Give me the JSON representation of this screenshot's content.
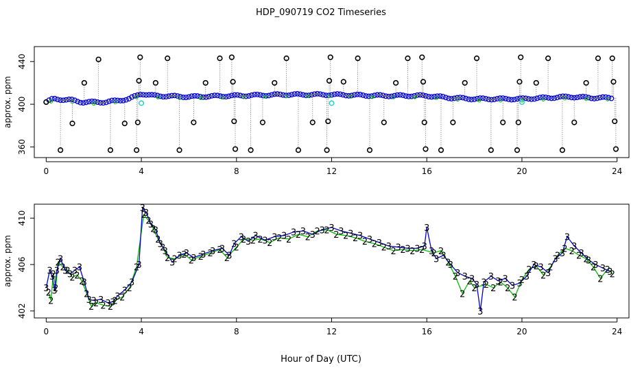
{
  "title": "HDP_090719  CO2 Timeseries",
  "xlabel": "Hour of Day (UTC)",
  "colors": {
    "axis": "#000000",
    "black_pts": "#000000",
    "blue": "#0000cc",
    "green": "#00bb00",
    "cyan": "#22cccc",
    "grey": "#888888"
  },
  "chart_data": [
    {
      "type": "scatter",
      "name": "top-panel",
      "ylabel": "approx. ppm",
      "xlim": [
        -0.5,
        24.5
      ],
      "ylim": [
        350,
        454
      ],
      "xticks": [
        0,
        4,
        8,
        12,
        16,
        20,
        24
      ],
      "yticks": [
        360,
        400,
        440
      ],
      "baseline": [
        [
          0,
          402
        ],
        [
          0.3,
          405
        ],
        [
          1,
          404
        ],
        [
          1.5,
          402
        ],
        [
          2.5,
          402
        ],
        [
          3.5,
          405
        ],
        [
          4,
          410
        ],
        [
          4.5,
          408
        ],
        [
          6,
          407
        ],
        [
          8,
          408
        ],
        [
          10,
          409
        ],
        [
          12,
          409
        ],
        [
          14,
          408
        ],
        [
          16,
          408
        ],
        [
          17,
          406
        ],
        [
          18,
          405
        ],
        [
          19,
          405
        ],
        [
          20,
          405
        ],
        [
          21,
          406
        ],
        [
          22,
          407
        ],
        [
          23,
          406
        ],
        [
          23.8,
          406
        ]
      ],
      "spikes": [
        {
          "x": 0.6,
          "y": 357
        },
        {
          "x": 1.1,
          "y": 382
        },
        {
          "x": 1.6,
          "y": 420
        },
        {
          "x": 2.2,
          "y": 442
        },
        {
          "x": 2.7,
          "y": 357
        },
        {
          "x": 3.3,
          "y": 382
        },
        {
          "x": 3.8,
          "y": 357
        },
        {
          "x": 3.85,
          "y": 383
        },
        {
          "x": 3.9,
          "y": 422
        },
        {
          "x": 3.95,
          "y": 444
        },
        {
          "x": 4.6,
          "y": 420
        },
        {
          "x": 5.1,
          "y": 443
        },
        {
          "x": 5.6,
          "y": 357
        },
        {
          "x": 6.2,
          "y": 383
        },
        {
          "x": 6.7,
          "y": 420
        },
        {
          "x": 7.3,
          "y": 443
        },
        {
          "x": 7.8,
          "y": 444
        },
        {
          "x": 7.85,
          "y": 421
        },
        {
          "x": 7.9,
          "y": 384
        },
        {
          "x": 7.95,
          "y": 358
        },
        {
          "x": 8.6,
          "y": 357
        },
        {
          "x": 9.1,
          "y": 383
        },
        {
          "x": 9.6,
          "y": 420
        },
        {
          "x": 10.1,
          "y": 443
        },
        {
          "x": 10.6,
          "y": 357
        },
        {
          "x": 11.2,
          "y": 383
        },
        {
          "x": 11.8,
          "y": 357
        },
        {
          "x": 11.85,
          "y": 384
        },
        {
          "x": 11.9,
          "y": 422
        },
        {
          "x": 11.95,
          "y": 444
        },
        {
          "x": 12.5,
          "y": 421
        },
        {
          "x": 13.1,
          "y": 443
        },
        {
          "x": 13.6,
          "y": 357
        },
        {
          "x": 14.2,
          "y": 383
        },
        {
          "x": 14.7,
          "y": 420
        },
        {
          "x": 15.2,
          "y": 443
        },
        {
          "x": 15.8,
          "y": 444
        },
        {
          "x": 15.85,
          "y": 421
        },
        {
          "x": 15.9,
          "y": 383
        },
        {
          "x": 15.95,
          "y": 358
        },
        {
          "x": 16.6,
          "y": 357
        },
        {
          "x": 17.1,
          "y": 383
        },
        {
          "x": 17.6,
          "y": 420
        },
        {
          "x": 18.1,
          "y": 443
        },
        {
          "x": 18.7,
          "y": 357
        },
        {
          "x": 19.2,
          "y": 383
        },
        {
          "x": 19.8,
          "y": 357
        },
        {
          "x": 19.85,
          "y": 383
        },
        {
          "x": 19.9,
          "y": 421
        },
        {
          "x": 19.95,
          "y": 444
        },
        {
          "x": 20.6,
          "y": 420
        },
        {
          "x": 21.1,
          "y": 443
        },
        {
          "x": 21.7,
          "y": 357
        },
        {
          "x": 22.2,
          "y": 383
        },
        {
          "x": 22.7,
          "y": 420
        },
        {
          "x": 23.2,
          "y": 443
        },
        {
          "x": 23.8,
          "y": 443
        },
        {
          "x": 23.85,
          "y": 421
        },
        {
          "x": 23.9,
          "y": 384
        },
        {
          "x": 23.95,
          "y": 358
        }
      ],
      "cyan_points": [
        [
          4.0,
          401
        ],
        [
          12.0,
          401
        ],
        [
          20.0,
          402
        ]
      ]
    },
    {
      "type": "line",
      "name": "bottom-panel",
      "ylabel": "approx. ppm",
      "xlim": [
        -0.5,
        24.5
      ],
      "ylim": [
        401.4,
        411.2
      ],
      "xticks": [
        0,
        4,
        8,
        12,
        16,
        20,
        24
      ],
      "yticks": [
        402,
        406,
        410
      ],
      "ytick_labels": [
        "402",
        "406",
        "410"
      ],
      "series": [
        {
          "name": "3",
          "label": "3",
          "color": "#0000cc",
          "points": [
            [
              0,
              404
            ],
            [
              0.15,
              405.5
            ],
            [
              0.25,
              405.0
            ],
            [
              0.35,
              403.8
            ],
            [
              0.45,
              405.5
            ],
            [
              0.6,
              406.5
            ],
            [
              0.8,
              405.5
            ],
            [
              1.0,
              405.2
            ],
            [
              1.2,
              405.5
            ],
            [
              1.4,
              405.8
            ],
            [
              1.6,
              404.5
            ],
            [
              1.8,
              403.0
            ],
            [
              2.0,
              402.9
            ],
            [
              2.3,
              403.0
            ],
            [
              2.6,
              402.7
            ],
            [
              2.8,
              402.8
            ],
            [
              3.0,
              403.3
            ],
            [
              3.3,
              403.8
            ],
            [
              3.6,
              404.5
            ],
            [
              3.9,
              406
            ],
            [
              4.05,
              410.9
            ],
            [
              4.2,
              410.5
            ],
            [
              4.4,
              409.5
            ],
            [
              4.6,
              409.0
            ],
            [
              4.8,
              407.8
            ],
            [
              5.0,
              407.2
            ],
            [
              5.3,
              406.2
            ],
            [
              5.6,
              406.8
            ],
            [
              5.9,
              407.0
            ],
            [
              6.2,
              406.6
            ],
            [
              6.6,
              406.9
            ],
            [
              7.0,
              407.2
            ],
            [
              7.4,
              407.4
            ],
            [
              7.7,
              406.8
            ],
            [
              7.9,
              407.8
            ],
            [
              8.2,
              408.4
            ],
            [
              8.5,
              408.0
            ],
            [
              8.8,
              408.5
            ],
            [
              9.2,
              408.1
            ],
            [
              9.6,
              408.4
            ],
            [
              10.0,
              408.5
            ],
            [
              10.4,
              408.8
            ],
            [
              10.8,
              408.9
            ],
            [
              11.2,
              408.6
            ],
            [
              11.6,
              409.0
            ],
            [
              12.0,
              409.2
            ],
            [
              12.4,
              408.9
            ],
            [
              12.8,
              408.7
            ],
            [
              13.2,
              408.5
            ],
            [
              13.6,
              408.2
            ],
            [
              14.0,
              407.9
            ],
            [
              14.4,
              407.6
            ],
            [
              14.8,
              407.5
            ],
            [
              15.2,
              407.4
            ],
            [
              15.6,
              407.4
            ],
            [
              15.9,
              407.6
            ],
            [
              16.0,
              409.2
            ],
            [
              16.2,
              407.2
            ],
            [
              16.4,
              406.5
            ],
            [
              16.7,
              406.8
            ],
            [
              17.0,
              406.0
            ],
            [
              17.3,
              405.3
            ],
            [
              17.6,
              405.0
            ],
            [
              17.9,
              404.8
            ],
            [
              18.1,
              404.3
            ],
            [
              18.25,
              402.0
            ],
            [
              18.4,
              404.5
            ],
            [
              18.7,
              405.0
            ],
            [
              19.0,
              404.6
            ],
            [
              19.3,
              404.8
            ],
            [
              19.6,
              404.2
            ],
            [
              19.9,
              404.4
            ],
            [
              20.2,
              405.0
            ],
            [
              20.5,
              406.0
            ],
            [
              20.8,
              405.8
            ],
            [
              21.1,
              405.3
            ],
            [
              21.4,
              406.5
            ],
            [
              21.7,
              407.0
            ],
            [
              21.9,
              408.4
            ],
            [
              22.2,
              407.6
            ],
            [
              22.5,
              407.0
            ],
            [
              22.8,
              406.4
            ],
            [
              23.1,
              406.0
            ],
            [
              23.4,
              405.7
            ],
            [
              23.7,
              405.4
            ]
          ]
        },
        {
          "name": "2",
          "label": "2",
          "color": "#00bb00",
          "points": [
            [
              0.1,
              403.6
            ],
            [
              0.2,
              402.9
            ],
            [
              0.3,
              405.2
            ],
            [
              0.4,
              404.0
            ],
            [
              0.5,
              406.2
            ],
            [
              0.7,
              405.8
            ],
            [
              0.9,
              405.5
            ],
            [
              1.1,
              404.9
            ],
            [
              1.3,
              405.1
            ],
            [
              1.5,
              404.6
            ],
            [
              1.7,
              403.5
            ],
            [
              1.9,
              402.4
            ],
            [
              2.1,
              402.7
            ],
            [
              2.4,
              402.5
            ],
            [
              2.7,
              402.4
            ],
            [
              2.9,
              402.9
            ],
            [
              3.2,
              403.2
            ],
            [
              3.5,
              404.0
            ],
            [
              3.8,
              405.8
            ],
            [
              4.1,
              410.3
            ],
            [
              4.3,
              409.8
            ],
            [
              4.5,
              409.1
            ],
            [
              4.7,
              408.2
            ],
            [
              4.9,
              407.5
            ],
            [
              5.1,
              406.6
            ],
            [
              5.4,
              406.5
            ],
            [
              5.8,
              406.9
            ],
            [
              6.1,
              406.4
            ],
            [
              6.5,
              406.7
            ],
            [
              6.9,
              407.0
            ],
            [
              7.3,
              407.3
            ],
            [
              7.6,
              406.6
            ],
            [
              8.0,
              407.5
            ],
            [
              8.3,
              408.2
            ],
            [
              8.7,
              408.1
            ],
            [
              9.0,
              408.2
            ],
            [
              9.4,
              407.9
            ],
            [
              9.8,
              408.3
            ],
            [
              10.2,
              408.2
            ],
            [
              10.6,
              408.6
            ],
            [
              11.0,
              408.4
            ],
            [
              11.4,
              408.9
            ],
            [
              11.8,
              409.0
            ],
            [
              12.2,
              408.6
            ],
            [
              12.6,
              408.5
            ],
            [
              13.0,
              408.3
            ],
            [
              13.4,
              408.0
            ],
            [
              13.8,
              407.8
            ],
            [
              14.2,
              407.5
            ],
            [
              14.6,
              407.2
            ],
            [
              15.0,
              407.3
            ],
            [
              15.4,
              407.2
            ],
            [
              15.8,
              407.3
            ],
            [
              16.3,
              407.0
            ],
            [
              16.6,
              407.2
            ],
            [
              16.9,
              406.2
            ],
            [
              17.2,
              405.0
            ],
            [
              17.5,
              403.5
            ],
            [
              17.8,
              404.6
            ],
            [
              18.0,
              404.0
            ],
            [
              18.5,
              404.3
            ],
            [
              18.8,
              404.0
            ],
            [
              19.1,
              404.5
            ],
            [
              19.4,
              404.0
            ],
            [
              19.7,
              403.2
            ],
            [
              20.0,
              404.7
            ],
            [
              20.3,
              405.6
            ],
            [
              20.6,
              405.9
            ],
            [
              20.9,
              405.1
            ],
            [
              21.2,
              405.8
            ],
            [
              21.5,
              406.8
            ],
            [
              21.8,
              407.4
            ],
            [
              22.1,
              407.2
            ],
            [
              22.4,
              406.8
            ],
            [
              22.7,
              406.5
            ],
            [
              23.0,
              405.8
            ],
            [
              23.3,
              404.8
            ],
            [
              23.6,
              405.6
            ],
            [
              23.8,
              405.2
            ]
          ]
        }
      ]
    }
  ]
}
